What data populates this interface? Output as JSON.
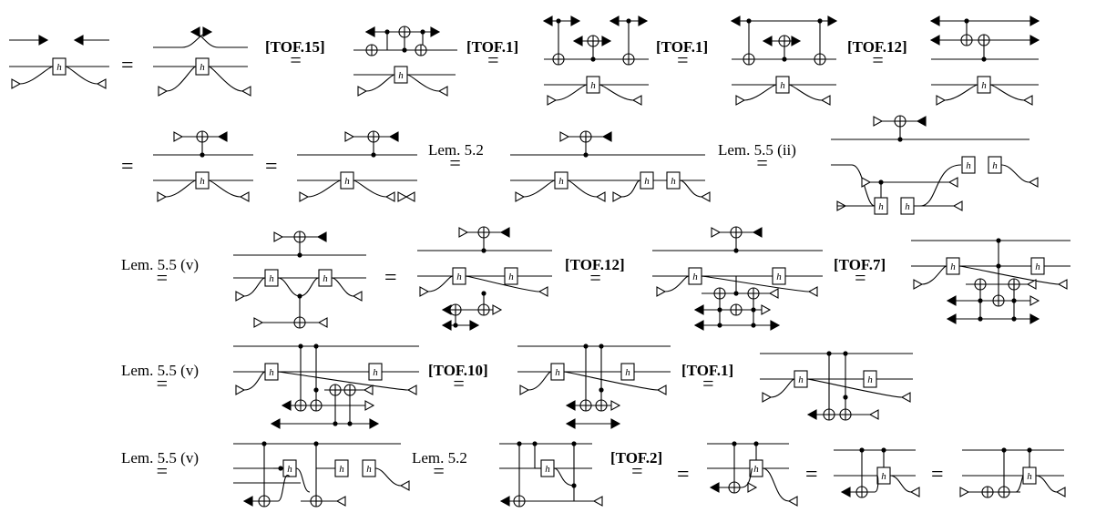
{
  "gate_label": "h",
  "rules": [
    {
      "text": "[TOF.15]",
      "bold": true
    },
    {
      "text": "[TOF.1]",
      "bold": true
    },
    {
      "text": "[TOF.1]",
      "bold": true
    },
    {
      "text": "[TOF.12]",
      "bold": true
    },
    {
      "text": "Lem. 5.2",
      "bold": false
    },
    {
      "text": "Lem. 5.5 (ii)",
      "bold": false
    },
    {
      "text": "Lem. 5.5 (v)",
      "bold": false
    },
    {
      "text": "[TOF.12]",
      "bold": true
    },
    {
      "text": "[TOF.7]",
      "bold": true
    },
    {
      "text": "Lem. 5.5 (v)",
      "bold": false
    },
    {
      "text": "[TOF.10]",
      "bold": true
    },
    {
      "text": "[TOF.1]",
      "bold": true
    },
    {
      "text": "Lem. 5.5 (v)",
      "bold": false
    },
    {
      "text": "Lem. 5.2",
      "bold": false
    },
    {
      "text": "[TOF.2]",
      "bold": true
    }
  ],
  "equals_sign": "="
}
